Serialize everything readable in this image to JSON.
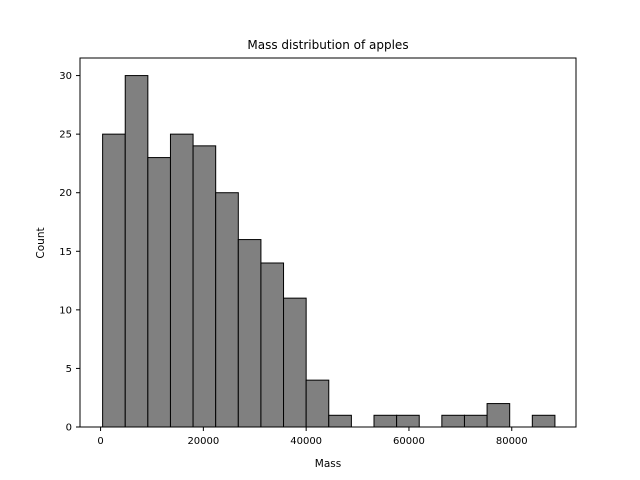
{
  "chart_data": {
    "type": "bar",
    "title": "Mass distribution of apples",
    "xlabel": "Mass",
    "ylabel": "Count",
    "bin_start": 400,
    "bin_width": 4400,
    "counts": [
      25,
      30,
      23,
      25,
      24,
      20,
      16,
      14,
      11,
      4,
      1,
      0,
      1,
      1,
      0,
      1,
      1,
      2,
      0,
      1
    ],
    "xlim": [
      -4000,
      92500
    ],
    "ylim": [
      0,
      31.5
    ],
    "xticks": [
      0,
      20000,
      40000,
      60000,
      80000
    ],
    "yticks": [
      0,
      5,
      10,
      15,
      20,
      25,
      30
    ],
    "bar_color": "#808080",
    "edge_color": "#000000",
    "grid": false,
    "legend": false
  }
}
